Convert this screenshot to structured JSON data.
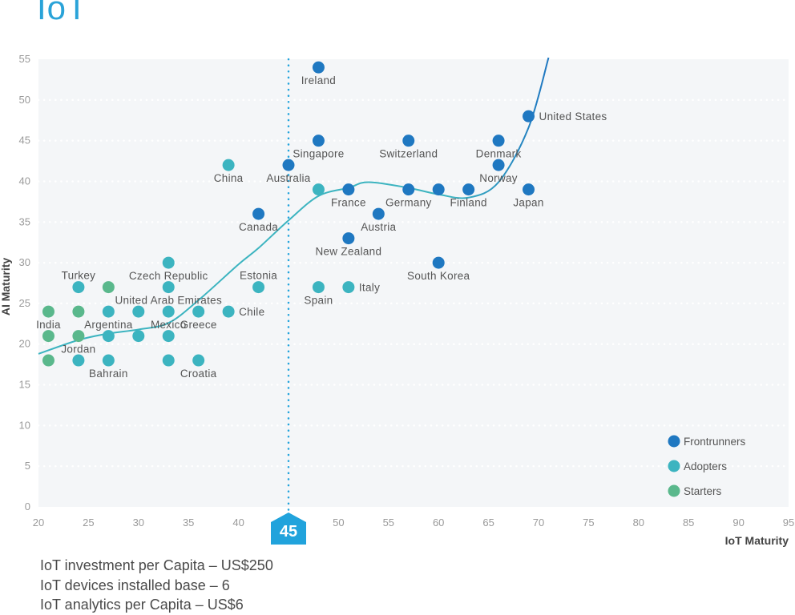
{
  "title": "IoT",
  "notes": [
    "IoT investment per Capita – US$250",
    "IoT devices installed base – 6",
    "IoT analytics per Capita – US$6"
  ],
  "chart_data": {
    "type": "scatter",
    "xlabel": "IoT Maturity",
    "ylabel": "AI Maturity",
    "xlim": [
      20,
      95
    ],
    "ylim": [
      0,
      55
    ],
    "xticks": [
      20,
      25,
      30,
      35,
      40,
      45,
      50,
      55,
      60,
      65,
      70,
      75,
      80,
      85,
      90,
      95
    ],
    "yticks": [
      0,
      5,
      10,
      15,
      20,
      25,
      30,
      35,
      40,
      45,
      50,
      55
    ],
    "grid": true,
    "legend_position": "bottom-right",
    "reference_line": {
      "x": 45,
      "label": "45",
      "color": "#21a3dc"
    },
    "series": [
      {
        "name": "Frontrunners",
        "color": "#1f78c1",
        "points": [
          {
            "x": 48,
            "y": 54,
            "label": "Ireland",
            "label_position": "below"
          },
          {
            "x": 69,
            "y": 48,
            "label": "United States",
            "label_position": "right"
          },
          {
            "x": 48,
            "y": 45,
            "label": "Singapore",
            "label_position": "below"
          },
          {
            "x": 57,
            "y": 45,
            "label": "Switzerland",
            "label_position": "below"
          },
          {
            "x": 66,
            "y": 45,
            "label": "Denmark",
            "label_position": "below"
          },
          {
            "x": 45,
            "y": 42,
            "label": "Australia",
            "label_position": "below"
          },
          {
            "x": 66,
            "y": 42,
            "label": "Norway",
            "label_position": "below"
          },
          {
            "x": 51,
            "y": 39,
            "label": "France",
            "label_position": "below"
          },
          {
            "x": 57,
            "y": 39,
            "label": "Germany",
            "label_position": "below"
          },
          {
            "x": 60,
            "y": 39,
            "label": ""
          },
          {
            "x": 63,
            "y": 39,
            "label": "Finland",
            "label_position": "below"
          },
          {
            "x": 69,
            "y": 39,
            "label": "Japan",
            "label_position": "below"
          },
          {
            "x": 42,
            "y": 36,
            "label": "Canada",
            "label_position": "below"
          },
          {
            "x": 54,
            "y": 36,
            "label": "Austria",
            "label_position": "below"
          },
          {
            "x": 51,
            "y": 33,
            "label": "New Zealand",
            "label_position": "below"
          },
          {
            "x": 60,
            "y": 30,
            "label": "South Korea",
            "label_position": "below"
          }
        ]
      },
      {
        "name": "Adopters",
        "color": "#3cb4c0",
        "points": [
          {
            "x": 39,
            "y": 42,
            "label": "China",
            "label_position": "below"
          },
          {
            "x": 48,
            "y": 39,
            "label": ""
          },
          {
            "x": 33,
            "y": 30,
            "label": "Czech Republic",
            "label_position": "below"
          },
          {
            "x": 24,
            "y": 27,
            "label": "Turkey",
            "label_position": "above"
          },
          {
            "x": 33,
            "y": 27,
            "label": "United Arab Emirates",
            "label_position": "below"
          },
          {
            "x": 42,
            "y": 27,
            "label": "Estonia",
            "label_position": "above"
          },
          {
            "x": 48,
            "y": 27,
            "label": "Spain",
            "label_position": "below"
          },
          {
            "x": 51,
            "y": 27,
            "label": "Italy",
            "label_position": "right"
          },
          {
            "x": 27,
            "y": 24,
            "label": "Argentina",
            "label_position": "below"
          },
          {
            "x": 30,
            "y": 24,
            "label": ""
          },
          {
            "x": 33,
            "y": 24,
            "label": "Mexico",
            "label_position": "below"
          },
          {
            "x": 36,
            "y": 24,
            "label": "Greece",
            "label_position": "below"
          },
          {
            "x": 39,
            "y": 24,
            "label": "Chile",
            "label_position": "right"
          },
          {
            "x": 27,
            "y": 21,
            "label": ""
          },
          {
            "x": 30,
            "y": 21,
            "label": ""
          },
          {
            "x": 33,
            "y": 21,
            "label": ""
          },
          {
            "x": 24,
            "y": 18,
            "label": ""
          },
          {
            "x": 27,
            "y": 18,
            "label": "Bahrain",
            "label_position": "below"
          },
          {
            "x": 33,
            "y": 18,
            "label": ""
          },
          {
            "x": 36,
            "y": 18,
            "label": "Croatia",
            "label_position": "below"
          }
        ]
      },
      {
        "name": "Starters",
        "color": "#5ab88c",
        "points": [
          {
            "x": 27,
            "y": 27,
            "label": ""
          },
          {
            "x": 21,
            "y": 24,
            "label": "India",
            "label_position": "below"
          },
          {
            "x": 24,
            "y": 24,
            "label": ""
          },
          {
            "x": 21,
            "y": 21,
            "label": ""
          },
          {
            "x": 24,
            "y": 21,
            "label": "Jordan",
            "label_position": "below"
          },
          {
            "x": 21,
            "y": 18,
            "label": ""
          }
        ]
      }
    ],
    "trendline": {
      "color_start": "#3cb4c0",
      "color_end": "#1f78c1",
      "points": [
        [
          20,
          18.8
        ],
        [
          24,
          20.5
        ],
        [
          27,
          21.3
        ],
        [
          30,
          21.8
        ],
        [
          33,
          22.6
        ],
        [
          36,
          25.4
        ],
        [
          40,
          29.8
        ],
        [
          42,
          31.8
        ],
        [
          45,
          35.2
        ],
        [
          48,
          38.2
        ],
        [
          51,
          39.2
        ],
        [
          53,
          39.9
        ],
        [
          57,
          39.2
        ],
        [
          60,
          38.4
        ],
        [
          63,
          38.0
        ],
        [
          66,
          39.9
        ],
        [
          69,
          46.6
        ],
        [
          71,
          55.2
        ]
      ]
    }
  }
}
